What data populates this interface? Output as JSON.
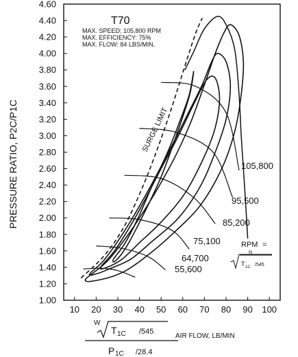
{
  "chart_data": {
    "type": "line",
    "title": "T70",
    "notes": [
      "MAX. SPEED: 105,800 RPM",
      "MAX. EFFICIENCY: 75%",
      "MAX. FLOW: 84 LBS/MIN."
    ],
    "ylabel": "PRESSURE RATIO, P2C/P1C",
    "xlabel_suffix": "AIR FLOW, LB/MIN",
    "xlabel_formula": {
      "numerator_prefix": "W",
      "numerator_term": "T",
      "numerator_sub": "1C",
      "numerator_div": "/545",
      "denominator_term": "P",
      "denominator_sub": "1C",
      "denominator_div": "/28.4"
    },
    "rpm_label": {
      "text": "RPM",
      "eq": "=",
      "sub": "N",
      "formula_term": "T",
      "formula_sub": "1C",
      "formula_div": "/545"
    },
    "x_ticks": [
      "10",
      "20",
      "30",
      "40",
      "50",
      "60",
      "70",
      "80",
      "90",
      "100"
    ],
    "y_ticks": [
      "1.00",
      "1.20",
      "1.40",
      "1.60",
      "1.80",
      "2.00",
      "2.20",
      "2.40",
      "2.60",
      "2.80",
      "3.00",
      "3.20",
      "3.40",
      "3.60",
      "3.80",
      "4.00",
      "4.20",
      "4.40",
      "4.60"
    ],
    "xlim": [
      5,
      105
    ],
    "ylim": [
      1.0,
      4.6
    ],
    "surge_limit": {
      "label": "SURGE LIMIT",
      "x": [
        13,
        24,
        33,
        41,
        48,
        55,
        61,
        66,
        69
      ],
      "y": [
        1.27,
        1.55,
        1.9,
        2.35,
        2.82,
        3.35,
        3.85,
        4.25,
        4.43
      ]
    },
    "speed_lines": [
      {
        "name": "55,600",
        "x": [
          14,
          22,
          30,
          38
        ],
        "y": [
          1.38,
          1.39,
          1.36,
          1.28
        ]
      },
      {
        "name": "64,700",
        "x": [
          20,
          32,
          44,
          52
        ],
        "y": [
          1.66,
          1.63,
          1.53,
          1.37
        ]
      },
      {
        "name": "75,100",
        "x": [
          26,
          40,
          55,
          63
        ],
        "y": [
          2.0,
          1.98,
          1.85,
          1.62
        ]
      },
      {
        "name": "85,200",
        "x": [
          33,
          50,
          65,
          75
        ],
        "y": [
          2.52,
          2.48,
          2.25,
          1.93
        ]
      },
      {
        "name": "95,500",
        "x": [
          40,
          57,
          74,
          83
        ],
        "y": [
          3.09,
          3.04,
          2.8,
          2.25
        ]
      },
      {
        "name": "105,800",
        "x": [
          50,
          66,
          80,
          86
        ],
        "y": [
          3.65,
          3.6,
          3.28,
          2.58
        ]
      }
    ],
    "efficiency_islands": [
      {
        "x": [
          28,
          33,
          39,
          46,
          53,
          59,
          63,
          65,
          63,
          57,
          50,
          42,
          34,
          29,
          28
        ],
        "y": [
          1.5,
          1.68,
          1.98,
          2.4,
          2.8,
          3.2,
          3.5,
          3.78,
          3.48,
          3.0,
          2.5,
          2.05,
          1.65,
          1.48,
          1.5
        ]
      },
      {
        "x": [
          22,
          29,
          39,
          49,
          58,
          65,
          71,
          75,
          77,
          75,
          70,
          61,
          50,
          40,
          32,
          25,
          22
        ],
        "y": [
          1.4,
          1.62,
          2.05,
          2.55,
          3.0,
          3.38,
          3.68,
          3.7,
          3.45,
          3.1,
          2.75,
          2.3,
          1.95,
          1.7,
          1.5,
          1.4,
          1.4
        ]
      },
      {
        "x": [
          17,
          24,
          34,
          45,
          55,
          63,
          69,
          73,
          76,
          80,
          82,
          80,
          75,
          68,
          58,
          46,
          36,
          26,
          20,
          17
        ],
        "y": [
          1.32,
          1.5,
          1.88,
          2.38,
          2.88,
          3.3,
          3.62,
          3.88,
          4.0,
          3.9,
          3.6,
          3.2,
          2.8,
          2.38,
          2.0,
          1.72,
          1.5,
          1.38,
          1.32,
          1.32
        ]
      },
      {
        "x": [
          15,
          26,
          40,
          54,
          63,
          70,
          75,
          79,
          82,
          86,
          88,
          87,
          84,
          78,
          68,
          55,
          44,
          33,
          22,
          15
        ],
        "y": [
          1.25,
          1.5,
          2.0,
          2.62,
          3.12,
          3.62,
          4.0,
          4.25,
          4.35,
          4.22,
          3.9,
          3.5,
          3.05,
          2.6,
          2.15,
          1.8,
          1.55,
          1.35,
          1.25,
          1.25
        ]
      }
    ],
    "choke_line": {
      "x": [
        61,
        65,
        70,
        76,
        80,
        84,
        86,
        87,
        88,
        89,
        90
      ],
      "y": [
        3.8,
        4.02,
        4.3,
        4.45,
        4.35,
        4.05,
        3.5,
        3.0,
        2.6,
        2.2,
        1.75
      ]
    }
  }
}
